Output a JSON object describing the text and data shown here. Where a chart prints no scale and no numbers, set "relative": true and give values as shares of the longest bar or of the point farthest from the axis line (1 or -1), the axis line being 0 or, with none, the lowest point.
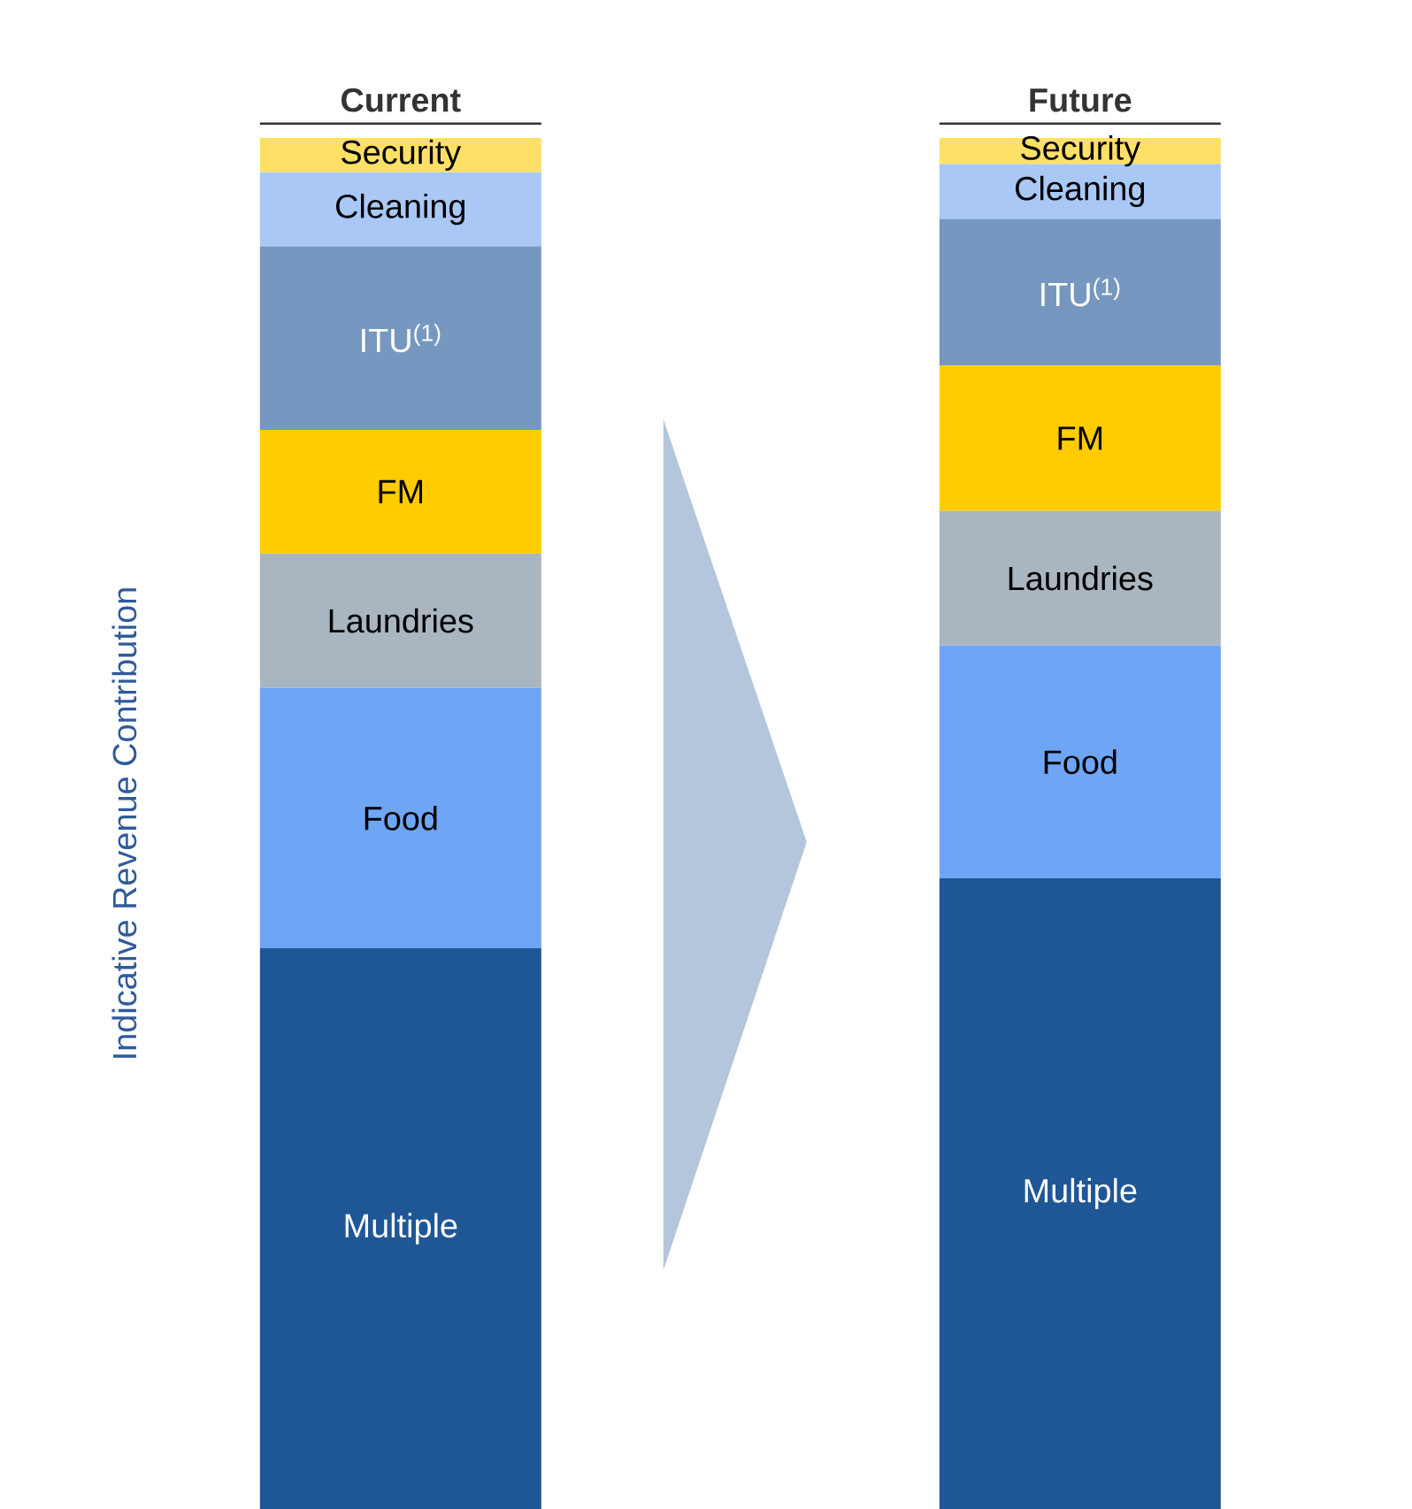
{
  "chart_data": {
    "type": "bar",
    "stacked": true,
    "relative": true,
    "categories": [
      "Current",
      "Future"
    ],
    "ylabel": "Indicative Revenue Contribution",
    "series": [
      {
        "name": "Multiple",
        "color": "#1f5796",
        "values": [
          0.409,
          0.46
        ]
      },
      {
        "name": "Food",
        "color": "#6fa5f5",
        "values": [
          0.19,
          0.17
        ]
      },
      {
        "name": "Laundries",
        "color": "#a9b6bf",
        "values": [
          0.098,
          0.098
        ]
      },
      {
        "name": "FM",
        "color": "#ffcc00",
        "values": [
          0.09,
          0.106
        ]
      },
      {
        "name": "ITU$^{(1)}$",
        "color": "#7698c0",
        "values": [
          0.134,
          0.107
        ]
      },
      {
        "name": "Cleaning",
        "color": "#a9c8f5",
        "values": [
          0.054,
          0.04
        ]
      },
      {
        "name": "Security",
        "color": "#ffe066",
        "values": [
          0.025,
          0.019
        ]
      }
    ]
  }
}
